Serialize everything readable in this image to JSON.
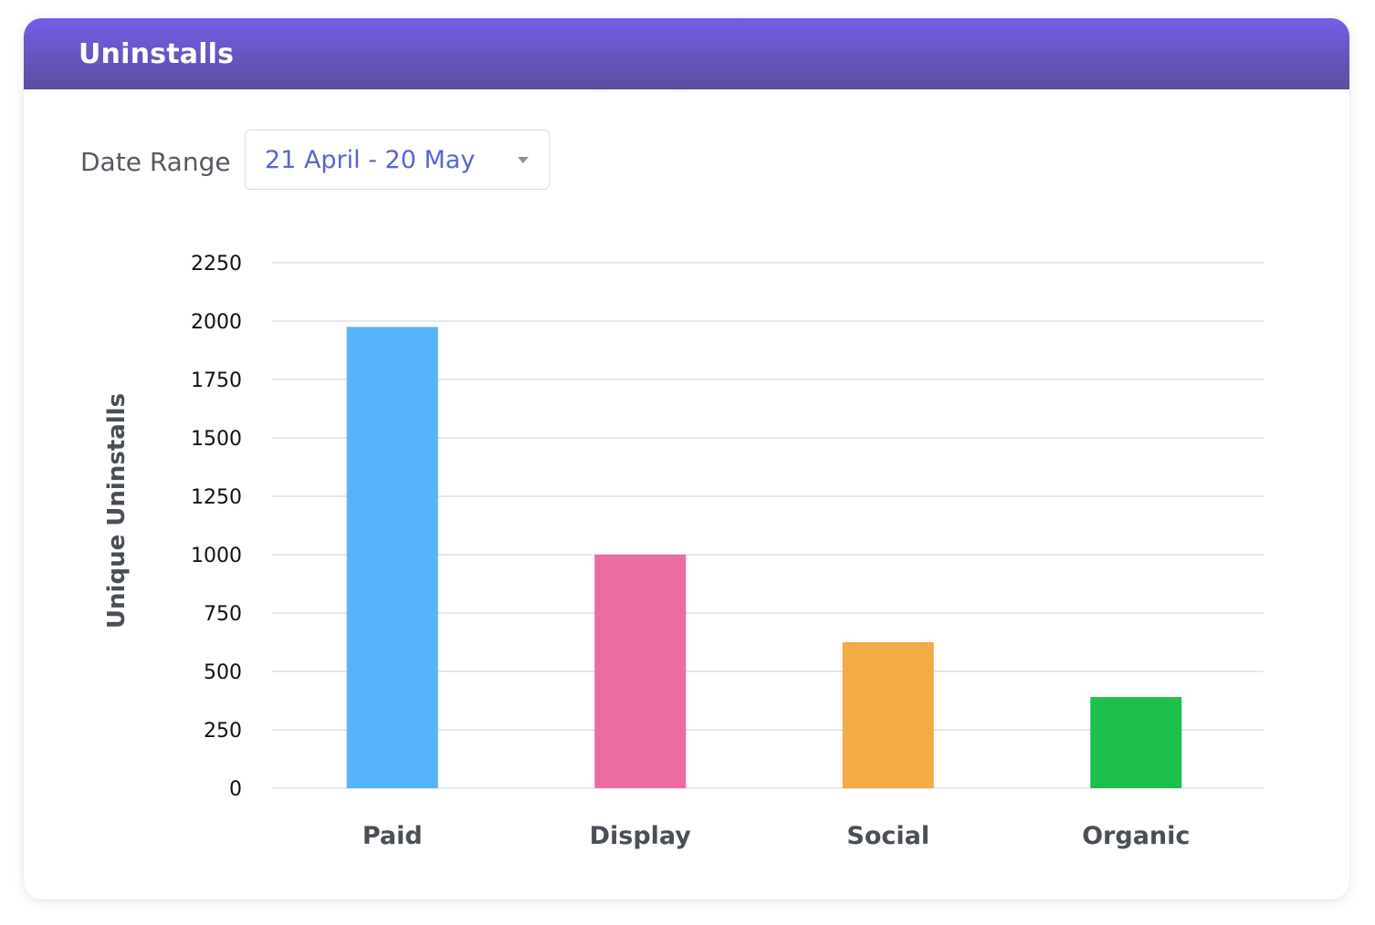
{
  "header": {
    "title": "Uninstalls"
  },
  "filter": {
    "label": "Date Range",
    "value": "21 April - 20 May",
    "icon": "chevron-down-icon"
  },
  "colors": {
    "header_gradient_start": "#735ee8",
    "header_gradient_end": "#5a4f9d",
    "select_text": "#5564d8",
    "gridline": "#e6e8ec"
  },
  "chart_data": {
    "type": "bar",
    "title": "",
    "xlabel": "",
    "ylabel": "Unique Uninstalls",
    "categories": [
      "Paid",
      "Display",
      "Social",
      "Organic"
    ],
    "values": [
      1975,
      1000,
      625,
      390
    ],
    "colors": [
      "#56b4fb",
      "#eb6ca0",
      "#f4ab43",
      "#1fbf4c"
    ],
    "ylim": [
      0,
      2250
    ],
    "yticks": [
      0,
      250,
      500,
      750,
      1000,
      1250,
      1500,
      1750,
      2000,
      2250
    ],
    "grid": true,
    "legend": "none"
  }
}
